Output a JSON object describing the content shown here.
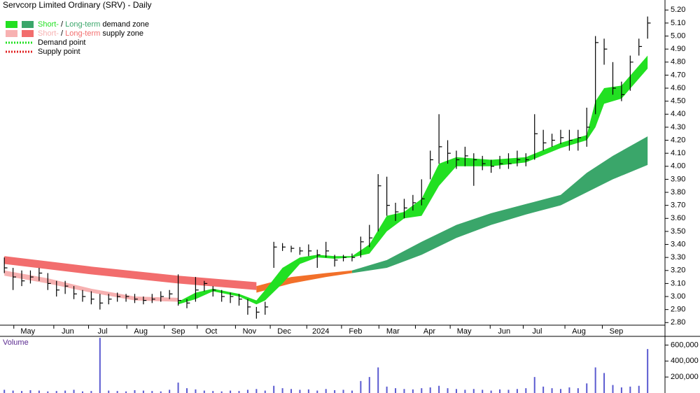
{
  "chart_data": {
    "type": "ohlc",
    "title": "Servcorp Limited Ordinary (SRV) - Daily",
    "legend": [
      {
        "parts": [
          "Short-",
          " / ",
          "Long-term",
          " demand zone"
        ],
        "colors": [
          "#22e022",
          "#3aa66a"
        ]
      },
      {
        "parts": [
          "Short-",
          " / ",
          "Long-term",
          " supply zone"
        ],
        "colors": [
          "#f7b1b1",
          "#f26d6d"
        ]
      },
      {
        "parts": [
          "Demand point"
        ],
        "colors": [
          "#22e022"
        ]
      },
      {
        "parts": [
          "Supply point"
        ],
        "colors": [
          "#e02020"
        ]
      }
    ],
    "xlim": [
      -0.5,
      76
    ],
    "xticks": [
      {
        "value": 2.7,
        "label": "May"
      },
      {
        "value": 7.3,
        "label": "Jun"
      },
      {
        "value": 11.3,
        "label": "Jul"
      },
      {
        "value": 15.7,
        "label": "Aug"
      },
      {
        "value": 20,
        "label": "Sep"
      },
      {
        "value": 23.8,
        "label": "Oct"
      },
      {
        "value": 28.2,
        "label": "Nov"
      },
      {
        "value": 32.2,
        "label": "Dec"
      },
      {
        "value": 36.4,
        "label": "2024"
      },
      {
        "value": 40.4,
        "label": "Feb"
      },
      {
        "value": 44.7,
        "label": "Mar"
      },
      {
        "value": 48.9,
        "label": "Apr"
      },
      {
        "value": 52.9,
        "label": "May"
      },
      {
        "value": 57.5,
        "label": "Jun"
      },
      {
        "value": 61.3,
        "label": "Jul"
      },
      {
        "value": 66.1,
        "label": "Aug"
      },
      {
        "value": 70.4,
        "label": "Sep"
      }
    ],
    "ylim": [
      2.78,
      5.25
    ],
    "yticks": [
      {
        "value": 2.8,
        "label": "2.80"
      },
      {
        "value": 2.9,
        "label": "2.90"
      },
      {
        "value": 3.0,
        "label": "3.00"
      },
      {
        "value": 3.1,
        "label": "3.10"
      },
      {
        "value": 3.2,
        "label": "3.20"
      },
      {
        "value": 3.3,
        "label": "3.30"
      },
      {
        "value": 3.4,
        "label": "3.40"
      },
      {
        "value": 3.5,
        "label": "3.50"
      },
      {
        "value": 3.6,
        "label": "3.60"
      },
      {
        "value": 3.7,
        "label": "3.70"
      },
      {
        "value": 3.8,
        "label": "3.80"
      },
      {
        "value": 3.9,
        "label": "3.90"
      },
      {
        "value": 4.0,
        "label": "4.00"
      },
      {
        "value": 4.1,
        "label": "4.10"
      },
      {
        "value": 4.2,
        "label": "4.20"
      },
      {
        "value": 4.3,
        "label": "4.30"
      },
      {
        "value": 4.4,
        "label": "4.40"
      },
      {
        "value": 4.5,
        "label": "4.50"
      },
      {
        "value": 4.6,
        "label": "4.60"
      },
      {
        "value": 4.7,
        "label": "4.70"
      },
      {
        "value": 4.8,
        "label": "4.80"
      },
      {
        "value": 4.9,
        "label": "4.90"
      },
      {
        "value": 5.0,
        "label": "5.00"
      },
      {
        "value": 5.1,
        "label": "5.10"
      },
      {
        "value": 5.2,
        "label": "5.20"
      }
    ],
    "bar_color": "#000000",
    "close": [
      3.22,
      3.15,
      3.12,
      3.15,
      3.18,
      3.1,
      3.05,
      3.08,
      3.02,
      3.0,
      2.98,
      2.95,
      2.98,
      3.0,
      3.0,
      2.98,
      2.97,
      2.98,
      3.0,
      3.02,
      2.97,
      2.95,
      3.05,
      3.1,
      3.05,
      3.0,
      3.0,
      2.98,
      2.92,
      2.88,
      2.92,
      3.38,
      3.38,
      3.37,
      3.35,
      3.35,
      3.32,
      3.35,
      3.28,
      3.3,
      3.3,
      3.42,
      3.45,
      3.85,
      3.7,
      3.65,
      3.68,
      3.72,
      3.75,
      4.05,
      4.15,
      4.1,
      4.05,
      4.08,
      4.05,
      4.02,
      4.0,
      4.02,
      4.02,
      4.05,
      4.05,
      4.25,
      4.18,
      4.2,
      4.22,
      4.2,
      4.22,
      4.3,
      4.95,
      4.9,
      4.6,
      4.55,
      4.8,
      4.92,
      5.1
    ],
    "high": [
      3.3,
      3.22,
      3.2,
      3.2,
      3.22,
      3.18,
      3.12,
      3.12,
      3.08,
      3.05,
      3.04,
      3.02,
      3.02,
      3.03,
      3.02,
      3.02,
      3.0,
      3.02,
      3.04,
      3.05,
      3.17,
      2.98,
      3.15,
      3.12,
      3.08,
      3.05,
      3.03,
      3.02,
      2.98,
      2.92,
      2.96,
      3.42,
      3.41,
      3.39,
      3.38,
      3.4,
      3.36,
      3.42,
      3.32,
      3.32,
      3.33,
      3.46,
      3.55,
      3.94,
      3.92,
      3.72,
      3.75,
      3.78,
      3.9,
      4.12,
      4.4,
      4.2,
      4.12,
      4.15,
      4.1,
      4.08,
      4.05,
      4.08,
      4.1,
      4.12,
      4.1,
      4.4,
      4.28,
      4.25,
      4.28,
      4.28,
      4.28,
      4.45,
      5.0,
      4.98,
      4.8,
      4.65,
      4.85,
      4.98,
      5.15
    ],
    "low": [
      3.18,
      3.05,
      3.08,
      3.1,
      3.12,
      3.05,
      3.0,
      3.02,
      2.98,
      2.96,
      2.94,
      2.9,
      2.94,
      2.96,
      2.96,
      2.95,
      2.94,
      2.95,
      2.96,
      2.98,
      2.93,
      2.91,
      2.96,
      3.04,
      3.0,
      2.96,
      2.95,
      2.93,
      2.86,
      2.83,
      2.86,
      3.22,
      3.35,
      3.34,
      3.32,
      3.31,
      3.22,
      3.3,
      3.23,
      3.27,
      3.27,
      3.3,
      3.38,
      3.5,
      3.62,
      3.58,
      3.6,
      3.66,
      3.7,
      3.9,
      4.02,
      4.02,
      3.98,
      4.0,
      3.85,
      3.97,
      3.95,
      3.98,
      3.98,
      4.0,
      4.0,
      4.05,
      4.12,
      4.15,
      4.17,
      4.12,
      4.12,
      4.15,
      4.4,
      4.78,
      4.55,
      4.5,
      4.58,
      4.85,
      4.98
    ],
    "bands": [
      {
        "color": "#f26d6d",
        "x": [
          0,
          10,
          20,
          29
        ],
        "upper": [
          3.31,
          3.23,
          3.16,
          3.11
        ],
        "lower": [
          3.25,
          3.17,
          3.1,
          3.05
        ]
      },
      {
        "color": "#f2702a",
        "x": [
          29,
          33,
          37,
          40
        ],
        "upper": [
          3.08,
          3.15,
          3.18,
          3.2
        ],
        "lower": [
          3.03,
          3.1,
          3.15,
          3.18
        ]
      },
      {
        "color": "#3aa66a",
        "x": [
          40,
          44,
          48,
          52,
          56,
          60,
          64,
          67,
          70,
          74
        ],
        "upper": [
          3.2,
          3.28,
          3.42,
          3.55,
          3.64,
          3.71,
          3.78,
          3.95,
          4.08,
          4.23
        ],
        "lower": [
          3.18,
          3.22,
          3.32,
          3.45,
          3.55,
          3.63,
          3.7,
          3.8,
          3.9,
          4.01
        ]
      },
      {
        "color": "#f7b1b1",
        "x": [
          0,
          5,
          10,
          15,
          20
        ],
        "upper": [
          3.2,
          3.14,
          3.06,
          3.0,
          2.99
        ],
        "lower": [
          3.16,
          3.1,
          3.03,
          2.97,
          2.96
        ]
      },
      {
        "color": "#22e022",
        "x": [
          20,
          22,
          24,
          27,
          29,
          30,
          32,
          34,
          36,
          38,
          40,
          42,
          44,
          46,
          48,
          50,
          52,
          56,
          60,
          64,
          66,
          67,
          68,
          69,
          71,
          74
        ],
        "upper": [
          2.96,
          3.03,
          3.06,
          3.02,
          2.97,
          3.05,
          3.22,
          3.3,
          3.32,
          3.31,
          3.31,
          3.4,
          3.62,
          3.65,
          3.75,
          4.02,
          4.07,
          4.05,
          4.07,
          4.18,
          4.22,
          4.24,
          4.5,
          4.6,
          4.62,
          4.85
        ],
        "lower": [
          2.94,
          2.98,
          3.04,
          3.0,
          2.94,
          2.97,
          3.1,
          3.25,
          3.3,
          3.29,
          3.3,
          3.33,
          3.5,
          3.6,
          3.62,
          3.85,
          4.0,
          4.0,
          4.03,
          4.14,
          4.18,
          4.2,
          4.3,
          4.48,
          4.52,
          4.75
        ]
      }
    ],
    "volume_label": "Volume",
    "volume_color": "#5a5ad0",
    "volume": [
      40000,
      30000,
      25000,
      35000,
      30000,
      20000,
      25000,
      30000,
      40000,
      20000,
      25000,
      690000,
      30000,
      25000,
      20000,
      35000,
      30000,
      25000,
      20000,
      40000,
      130000,
      60000,
      45000,
      30000,
      25000,
      20000,
      30000,
      25000,
      40000,
      50000,
      30000,
      90000,
      60000,
      50000,
      40000,
      45000,
      30000,
      50000,
      35000,
      40000,
      30000,
      150000,
      200000,
      320000,
      80000,
      60000,
      50000,
      45000,
      60000,
      70000,
      90000,
      60000,
      50000,
      40000,
      50000,
      40000,
      30000,
      45000,
      40000,
      50000,
      60000,
      200000,
      80000,
      60000,
      50000,
      70000,
      60000,
      120000,
      320000,
      250000,
      100000,
      70000,
      80000,
      90000,
      550000
    ],
    "vlim": [
      0,
      700000
    ],
    "vticks": [
      {
        "value": 200000,
        "label": "200,000"
      },
      {
        "value": 400000,
        "label": "400,000"
      },
      {
        "value": 600000,
        "label": "600,000"
      }
    ]
  }
}
